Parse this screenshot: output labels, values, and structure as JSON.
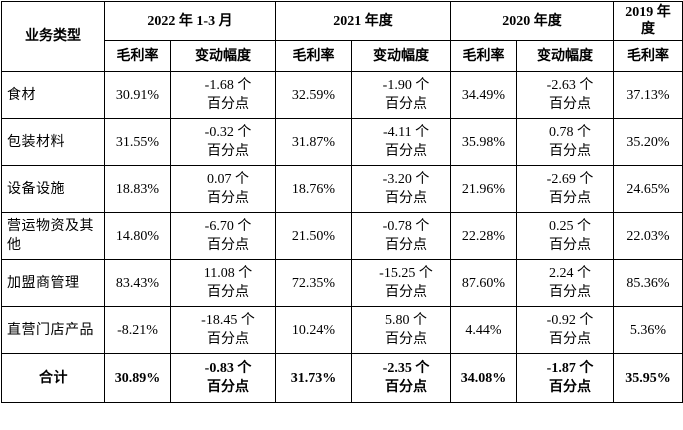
{
  "header": {
    "category_label": "业务类型",
    "period_1": "2022 年 1-3 月",
    "period_2": "2021 年度",
    "period_3": "2020 年度",
    "period_4": "2019 年度",
    "margin_label": "毛利率",
    "change_label": "变动幅度"
  },
  "unit_suffix": "个",
  "unit_line2": "百分点",
  "rows": [
    {
      "category": "食材",
      "m2022": "30.91%",
      "c2022": "-1.68",
      "m2021": "32.59%",
      "c2021": "-1.90",
      "m2020": "34.49%",
      "c2020": "-2.63",
      "m2019": "37.13%"
    },
    {
      "category": "包装材料",
      "m2022": "31.55%",
      "c2022": "-0.32",
      "m2021": "31.87%",
      "c2021": "-4.11",
      "m2020": "35.98%",
      "c2020": "0.78",
      "m2019": "35.20%"
    },
    {
      "category": "设备设施",
      "m2022": "18.83%",
      "c2022": "0.07",
      "m2021": "18.76%",
      "c2021": "-3.20",
      "m2020": "21.96%",
      "c2020": "-2.69",
      "m2019": "24.65%"
    },
    {
      "category": "营运物资及其他",
      "m2022": "14.80%",
      "c2022": "-6.70",
      "m2021": "21.50%",
      "c2021": "-0.78",
      "m2020": "22.28%",
      "c2020": "0.25",
      "m2019": "22.03%"
    },
    {
      "category": "加盟商管理",
      "m2022": "83.43%",
      "c2022": "11.08",
      "m2021": "72.35%",
      "c2021": "-15.25",
      "m2020": "87.60%",
      "c2020": "2.24",
      "m2019": "85.36%"
    },
    {
      "category": "直营门店产品",
      "m2022": "-8.21%",
      "c2022": "-18.45",
      "m2021": "10.24%",
      "c2021": "5.80",
      "m2020": "4.44%",
      "c2020": "-0.92",
      "m2019": "5.36%"
    }
  ],
  "total": {
    "category": "合计",
    "m2022": "30.89%",
    "c2022": "-0.83",
    "m2021": "31.73%",
    "c2021": "-2.35",
    "m2020": "34.08%",
    "c2020": "-1.87",
    "m2019": "35.95%"
  }
}
